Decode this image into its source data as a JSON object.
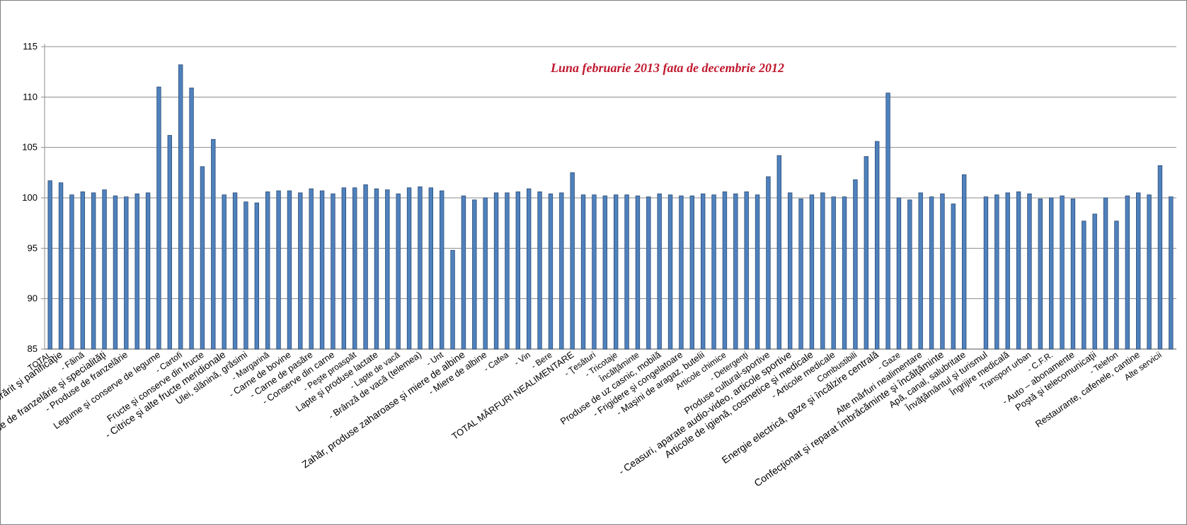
{
  "chart_data": {
    "type": "bar",
    "title": "Luna februarie 2013 fata de decembrie 2012",
    "xlabel": "",
    "ylabel": "",
    "ylim": [
      85,
      115
    ],
    "yticks": [
      85,
      90,
      95,
      100,
      105,
      110,
      115
    ],
    "grid": true,
    "legend": "none",
    "bar_color": "#4f81bd",
    "bar_edge_color": "#2c4d75",
    "title_color": "#c0192e",
    "categories": [
      "TOTAL",
      "Produse de morărit şi panificaţie",
      "",
      "- Făină",
      "",
      "Pâine, produse de franzelărie şi specialităţi",
      "",
      "- Produse de franzelărie",
      "",
      "",
      "Legume şi conserve de legume",
      "",
      "- Cartofi",
      "",
      "Fructe şi conserve din fructe",
      "",
      "- Citrice şi alte fructe meridionale",
      "",
      "Ulei, slănină, grăsimi",
      "",
      "- Margarină",
      "",
      "- Carne de bovine",
      "",
      "- Carne de pasăre",
      "",
      "- Conserve din carne",
      "",
      "- Peşte proaspăt",
      "",
      "Lapte şi produse lactate",
      "",
      "- Lapte de vacă",
      "",
      "- Brânză de vacă (telemea)",
      "",
      "- Unt",
      "",
      "Zahăr, produse zaharoase şi miere de albine",
      "",
      "- Miere de albine",
      "",
      "- Cafea",
      "",
      "- Vin",
      "",
      "- Bere",
      "",
      "TOTAL MĂRFURI NEALIMENTARE",
      "",
      "- Ţesături",
      "",
      "- Tricotaje",
      "",
      "Încălţăminte",
      "",
      "Produse de uz casnic, mobilă",
      "",
      "- Frigidere şi congelatoare",
      "",
      "- Maşini de aragaz, butelii",
      "",
      "Articole chimice",
      "",
      "- Detergenţi",
      "",
      "Produse cultural-sportive",
      "",
      "- Ceasuri, aparate audio-video, articole sportive",
      "",
      "Articole de igienă, cosmetice şi medicale",
      "",
      "- Articole medicale",
      "",
      "Combustibili",
      "",
      "Energie electrică, gaze şi încălzire centrală",
      "",
      "- Gaze",
      "",
      "Alte mărfuri nealimentare",
      "",
      "Confecţionat şi reparat îmbrăcăminte şi încălţăminte",
      "",
      "Apă, canal, salubritate",
      "",
      "Învăţământul şi turismul",
      "",
      "Îngrijire medicală",
      "",
      "Transport urban",
      "",
      "- C.F.R.",
      "",
      "- Auto – abonamente",
      "",
      "Poştă şi telecomunicaţii",
      "",
      "- Telefon",
      "",
      "Restaurante, cafenele, cantine",
      "",
      "Alte servicii",
      ""
    ],
    "values": [
      101.7,
      101.5,
      100.3,
      100.6,
      100.5,
      100.8,
      100.2,
      100.1,
      100.4,
      100.5,
      111.0,
      106.2,
      113.2,
      110.9,
      103.1,
      105.8,
      100.3,
      100.5,
      99.6,
      99.5,
      100.6,
      100.7,
      100.7,
      100.5,
      100.9,
      100.7,
      100.4,
      101.0,
      101.0,
      101.3,
      100.9,
      100.8,
      100.4,
      101.0,
      101.1,
      101.0,
      100.7,
      94.8,
      100.2,
      99.8,
      100.0,
      100.5,
      100.5,
      100.6,
      100.9,
      100.6,
      100.4,
      100.5,
      102.5,
      100.3,
      100.3,
      100.2,
      100.3,
      100.3,
      100.2,
      100.1,
      100.4,
      100.3,
      100.2,
      100.2,
      100.4,
      100.3,
      100.6,
      100.4,
      100.6,
      100.3,
      102.1,
      104.2,
      100.5,
      99.9,
      100.3,
      100.5,
      100.1,
      100.1,
      101.8,
      104.1,
      105.6,
      110.4,
      100.0,
      99.8,
      100.5,
      100.1,
      100.4,
      99.4,
      102.3,
      null,
      100.1,
      100.3,
      100.5,
      100.6,
      100.4,
      99.9,
      100.0,
      100.2,
      99.9,
      97.7,
      98.4,
      100.0,
      97.7,
      100.2,
      100.5,
      100.3,
      103.2,
      100.1
    ]
  }
}
